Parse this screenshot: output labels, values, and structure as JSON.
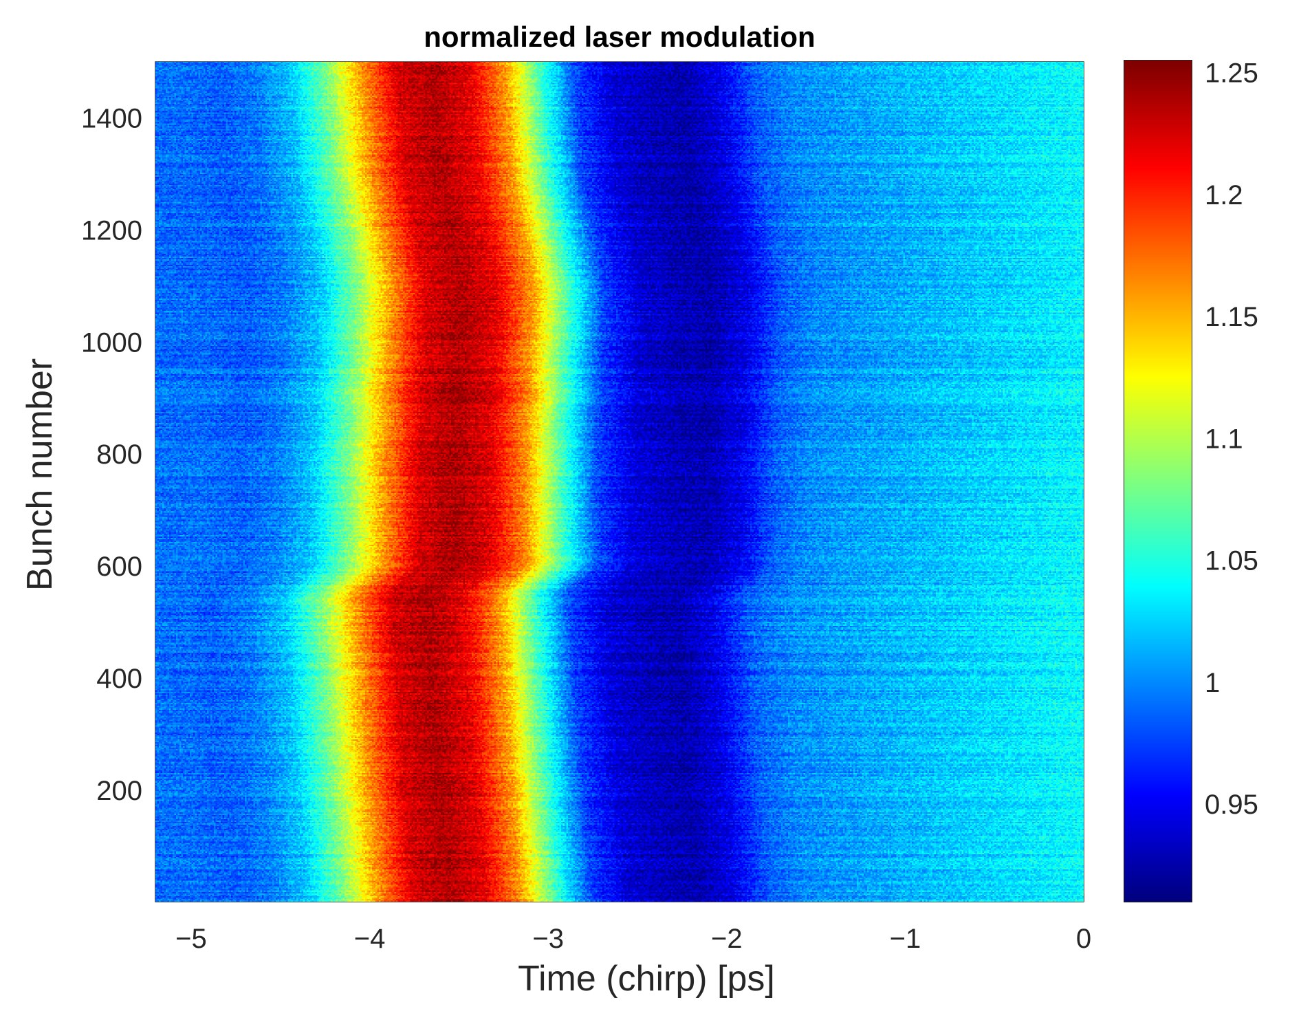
{
  "chart_data": {
    "type": "heatmap",
    "title": "normalized laser modulation",
    "xlabel": "Time (chirp) [ps]",
    "ylabel": "Bunch number",
    "xlim": [
      -5.2,
      0
    ],
    "ylim": [
      1,
      1500
    ],
    "x_ticks": [
      -5,
      -4,
      -3,
      -2,
      -1,
      0
    ],
    "x_tick_labels": [
      "−5",
      "−4",
      "−3",
      "−2",
      "−1",
      "0"
    ],
    "y_ticks": [
      200,
      400,
      600,
      800,
      1000,
      1200,
      1400
    ],
    "y_tick_labels": [
      "200",
      "400",
      "600",
      "800",
      "1000",
      "1200",
      "1400"
    ],
    "colormap": "jet",
    "clim": [
      0.91,
      1.255
    ],
    "colorbar_ticks": [
      0.95,
      1,
      1.05,
      1.1,
      1.15,
      1.2,
      1.25
    ],
    "colorbar_tick_labels": [
      "0.95",
      "1",
      "1.05",
      "1.1",
      "1.15",
      "1.2",
      "1.25"
    ],
    "profile": {
      "description": "approximate mean modulation vs time (per bunch row, with small drift)",
      "time_ps": [
        -5.2,
        -5.0,
        -4.8,
        -4.6,
        -4.4,
        -4.2,
        -4.0,
        -3.8,
        -3.6,
        -3.4,
        -3.2,
        -3.0,
        -2.8,
        -2.6,
        -2.4,
        -2.2,
        -2.0,
        -1.8,
        -1.6,
        -1.4,
        -1.2,
        -1.0,
        -0.8,
        -0.6,
        -0.4,
        -0.2,
        0.0
      ],
      "value": [
        0.99,
        0.99,
        0.985,
        0.995,
        1.02,
        1.08,
        1.16,
        1.225,
        1.24,
        1.22,
        1.16,
        1.06,
        0.975,
        0.94,
        0.93,
        0.925,
        0.945,
        0.985,
        1.0,
        1.005,
        1.01,
        1.015,
        1.02,
        1.025,
        1.03,
        1.035,
        1.04
      ]
    },
    "ridge_drift": {
      "description": "peak position offset (ps) as a function of bunch number",
      "bunch": [
        1,
        250,
        550,
        600,
        800,
        1100,
        1300,
        1500
      ],
      "offset_ps": [
        0.05,
        -0.02,
        -0.08,
        0.08,
        0.08,
        0.12,
        0.0,
        -0.05
      ]
    }
  }
}
